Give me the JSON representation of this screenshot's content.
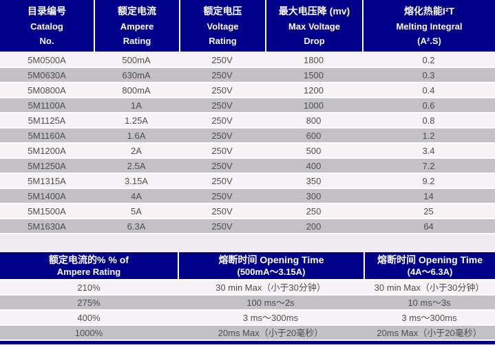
{
  "colors": {
    "header_bg": "#00008B",
    "header_text": "#FFFFFF",
    "row_light": "#F7F2F6",
    "row_gray": "#C3C1C6",
    "page_bg": "#F0EBEF",
    "cell_text": "#4D4D4D"
  },
  "table1": {
    "headers": [
      {
        "l1": "目录编号",
        "l2": "Catalog",
        "l3": "No."
      },
      {
        "l1": "额定电流",
        "l2": "Ampere",
        "l3": "Rating"
      },
      {
        "l1": "额定电压",
        "l2": "Voltage",
        "l3": "Rating"
      },
      {
        "l1": "最大电压降 (mv)",
        "l2": "Max Voltage",
        "l3": "Drop"
      },
      {
        "l1": "熔化热能I²T",
        "l2": "Melting Integral",
        "l3": "(A².S)"
      }
    ],
    "rows": [
      [
        "5M0500A",
        "500mA",
        "250V",
        "1800",
        "0.2"
      ],
      [
        "5M0630A",
        "630mA",
        "250V",
        "1500",
        "0.3"
      ],
      [
        "5M0800A",
        "800mA",
        "250V",
        "1200",
        "0.4"
      ],
      [
        "5M1100A",
        "1A",
        "250V",
        "1000",
        "0.6"
      ],
      [
        "5M1125A",
        "1.25A",
        "250V",
        "800",
        "0.8"
      ],
      [
        "5M1160A",
        "1.6A",
        "250V",
        "600",
        "1.2"
      ],
      [
        "5M1200A",
        "2A",
        "250V",
        "500",
        "3.4"
      ],
      [
        "5M1250A",
        "2.5A",
        "250V",
        "400",
        "7.2"
      ],
      [
        "5M1315A",
        "3.15A",
        "250V",
        "350",
        "9.2"
      ],
      [
        "5M1400A",
        "4A",
        "250V",
        "300",
        "14"
      ],
      [
        "5M1500A",
        "5A",
        "250V",
        "250",
        "25"
      ],
      [
        "5M1630A",
        "6.3A",
        "250V",
        "200",
        "64"
      ]
    ]
  },
  "table2": {
    "headers": [
      {
        "l1": "额定电流的% % of",
        "l2": "Ampere Rating"
      },
      {
        "l1": "熔断时间 Opening Time",
        "l2": "(500mA～3.15A)"
      },
      {
        "l1": "熔断时间 Opening Time",
        "l2": "(4A～6.3A)"
      }
    ],
    "rows": [
      [
        "210%",
        "30 min Max（小于30分钟）",
        "30 min Max（小于30分钟）"
      ],
      [
        "275%",
        "100 ms～2s",
        "10 ms～3s"
      ],
      [
        "400%",
        "3 ms～300ms",
        "3 ms～300ms"
      ],
      [
        "1000%",
        "20ms Max（小于20毫秒）",
        "20ms Max（小于20毫秒）"
      ]
    ]
  }
}
